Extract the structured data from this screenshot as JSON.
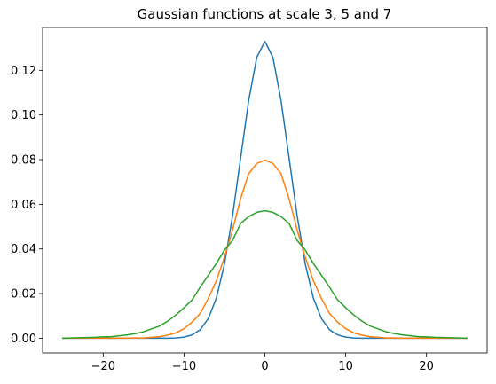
{
  "chart_data": {
    "type": "line",
    "title": "Gaussian functions at scale 3, 5 and 7",
    "xlabel": "",
    "ylabel": "",
    "xlim": [
      -27.5,
      27.5
    ],
    "ylim": [
      -0.0066,
      0.1392
    ],
    "x_ticks": [
      -20,
      -10,
      0,
      10,
      20
    ],
    "x_tick_labels": [
      "−20",
      "−10",
      "0",
      "10",
      "20"
    ],
    "y_ticks": [
      0.0,
      0.02,
      0.04,
      0.06,
      0.08,
      0.1,
      0.12
    ],
    "y_tick_labels": [
      "0.00",
      "0.02",
      "0.04",
      "0.06",
      "0.08",
      "0.10",
      "0.12"
    ],
    "grid": false,
    "legend": "none",
    "x": [
      -25,
      -24,
      -23,
      -22,
      -21,
      -20,
      -19,
      -18,
      -17,
      -16,
      -15,
      -14,
      -13,
      -12,
      -11,
      -10,
      -9,
      -8,
      -7,
      -6,
      -5,
      -4,
      -3,
      -2,
      -1,
      0,
      1,
      2,
      3,
      4,
      5,
      6,
      7,
      8,
      9,
      10,
      11,
      12,
      13,
      14,
      15,
      16,
      17,
      18,
      19,
      20,
      21,
      22,
      23,
      24,
      25
    ],
    "series": [
      {
        "color": "#1f77b4",
        "values": [
          0.0,
          0.0,
          0.0,
          0.0,
          0.0,
          0.0,
          0.0,
          0.0,
          0.0,
          0.0,
          0.0,
          0.0,
          0.0,
          0.0,
          0.0001,
          0.0005,
          0.0015,
          0.0038,
          0.0088,
          0.018,
          0.0332,
          0.0547,
          0.0807,
          0.1065,
          0.1258,
          0.133,
          0.1258,
          0.1065,
          0.0807,
          0.0547,
          0.0332,
          0.018,
          0.0088,
          0.0038,
          0.0015,
          0.0005,
          0.0001,
          0.0,
          0.0,
          0.0,
          0.0,
          0.0,
          0.0,
          0.0,
          0.0,
          0.0,
          0.0,
          0.0,
          0.0,
          0.0,
          0.0
        ]
      },
      {
        "color": "#ff7f0e",
        "values": [
          0.0,
          0.0,
          0.0,
          0.0,
          0.0,
          0.0,
          0.0,
          0.0,
          0.0,
          0.0001,
          0.0001,
          0.0004,
          0.0007,
          0.0014,
          0.0024,
          0.0043,
          0.0072,
          0.0111,
          0.0178,
          0.0258,
          0.0363,
          0.0484,
          0.0625,
          0.0737,
          0.0783,
          0.0798,
          0.0783,
          0.0737,
          0.0625,
          0.0484,
          0.0363,
          0.0258,
          0.0178,
          0.0111,
          0.0072,
          0.0043,
          0.0024,
          0.0014,
          0.0007,
          0.0004,
          0.0001,
          0.0001,
          0.0,
          0.0,
          0.0,
          0.0,
          0.0,
          0.0,
          0.0,
          0.0,
          0.0
        ]
      },
      {
        "color": "#2ca02c",
        "values": [
          0.0,
          0.0001,
          0.0002,
          0.0003,
          0.0004,
          0.0006,
          0.0007,
          0.0011,
          0.0015,
          0.0021,
          0.0029,
          0.0042,
          0.0055,
          0.0077,
          0.0104,
          0.0137,
          0.0172,
          0.0229,
          0.0282,
          0.0335,
          0.0395,
          0.0438,
          0.0514,
          0.0545,
          0.0564,
          0.0571,
          0.0564,
          0.0545,
          0.0514,
          0.0438,
          0.0395,
          0.0335,
          0.0282,
          0.0229,
          0.0172,
          0.0137,
          0.0104,
          0.0077,
          0.0055,
          0.0042,
          0.0029,
          0.0021,
          0.0015,
          0.0011,
          0.0007,
          0.0006,
          0.0004,
          0.0003,
          0.0002,
          0.0001,
          0.0
        ]
      }
    ]
  }
}
